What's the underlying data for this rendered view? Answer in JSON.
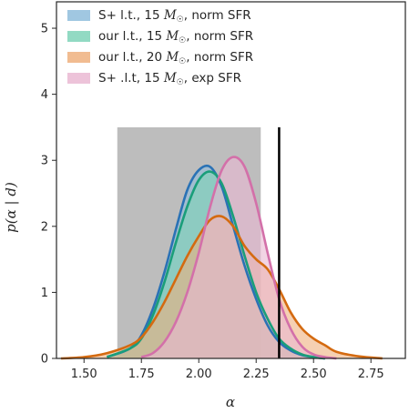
{
  "chart_data": {
    "type": "area",
    "xlabel": "α",
    "ylabel": "p(α | d)",
    "xlim": [
      1.38,
      2.9
    ],
    "ylim": [
      0,
      5.4
    ],
    "xticks": [
      "1.50",
      "1.75",
      "2.00",
      "2.25",
      "2.50",
      "2.75"
    ],
    "xtick_values": [
      1.5,
      1.75,
      2.0,
      2.25,
      2.5,
      2.75
    ],
    "yticks": [
      "0",
      "1",
      "2",
      "3",
      "4",
      "5"
    ],
    "ytick_values": [
      0,
      1,
      2,
      3,
      4,
      5
    ],
    "shaded_band": {
      "x0": 1.645,
      "x1": 2.27,
      "top": 3.5,
      "color": "#bdbdbd"
    },
    "vertical_line": {
      "x": 2.35,
      "y_top": 3.5,
      "color": "#000000"
    },
    "legend_position": "top-left",
    "series": [
      {
        "name": "S+ l.t., 15 M☉, norm SFR",
        "fill": "#8fbddc",
        "line": "#2a72b5",
        "x": [
          1.6,
          1.7,
          1.75,
          1.8,
          1.85,
          1.9,
          1.95,
          2.0,
          2.05,
          2.1,
          2.15,
          2.2,
          2.25,
          2.3,
          2.35,
          2.4,
          2.45,
          2.5,
          2.55
        ],
        "y": [
          0.02,
          0.15,
          0.35,
          0.75,
          1.3,
          1.95,
          2.55,
          2.85,
          2.9,
          2.6,
          2.0,
          1.4,
          0.9,
          0.5,
          0.25,
          0.12,
          0.05,
          0.02,
          0.0
        ]
      },
      {
        "name": "our l.t., 15 M☉, norm SFR",
        "fill": "#7fd4b8",
        "line": "#1a9e7a",
        "x": [
          1.6,
          1.7,
          1.75,
          1.8,
          1.85,
          1.9,
          1.95,
          2.0,
          2.05,
          2.1,
          2.15,
          2.2,
          2.25,
          2.3,
          2.35,
          2.4,
          2.45,
          2.5,
          2.55
        ],
        "y": [
          0.02,
          0.15,
          0.3,
          0.65,
          1.15,
          1.75,
          2.3,
          2.7,
          2.83,
          2.65,
          2.15,
          1.55,
          1.0,
          0.6,
          0.3,
          0.15,
          0.06,
          0.02,
          0.0
        ]
      },
      {
        "name": "our l.t., 20 M☉, norm SFR",
        "fill": "#eeb07e",
        "line": "#d46a10",
        "x": [
          1.4,
          1.5,
          1.6,
          1.7,
          1.75,
          1.8,
          1.85,
          1.9,
          1.95,
          2.0,
          2.05,
          2.1,
          2.15,
          2.2,
          2.25,
          2.3,
          2.35,
          2.4,
          2.45,
          2.5,
          2.55,
          2.6,
          2.7,
          2.8
        ],
        "y": [
          0.0,
          0.02,
          0.08,
          0.2,
          0.32,
          0.55,
          0.85,
          1.2,
          1.55,
          1.85,
          2.1,
          2.15,
          2.0,
          1.7,
          1.5,
          1.35,
          1.05,
          0.7,
          0.45,
          0.3,
          0.2,
          0.1,
          0.03,
          0.0
        ]
      },
      {
        "name": "S+ .l.t, 15 M☉, exp SFR",
        "fill": "#eab8d2",
        "line": "#d370a9",
        "x": [
          1.75,
          1.8,
          1.85,
          1.9,
          1.95,
          2.0,
          2.05,
          2.1,
          2.15,
          2.2,
          2.25,
          2.3,
          2.35,
          2.4,
          2.45,
          2.5,
          2.55,
          2.6
        ],
        "y": [
          0.02,
          0.08,
          0.25,
          0.55,
          1.0,
          1.6,
          2.3,
          2.85,
          3.05,
          2.9,
          2.35,
          1.6,
          0.9,
          0.45,
          0.18,
          0.06,
          0.02,
          0.0
        ]
      }
    ]
  },
  "legend": {
    "entries": [
      {
        "prefix": "S+ l.t., 15",
        "mass": "M",
        "sun": "☉",
        "suffix": ", norm SFR"
      },
      {
        "prefix": "our l.t., 15",
        "mass": "M",
        "sun": "☉",
        "suffix": ", norm SFR"
      },
      {
        "prefix": "our l.t., 20",
        "mass": "M",
        "sun": "☉",
        "suffix": ", norm SFR"
      },
      {
        "prefix": "S+ .l.t, 15",
        "mass": "M",
        "sun": "☉",
        "suffix": ", exp SFR"
      }
    ]
  }
}
